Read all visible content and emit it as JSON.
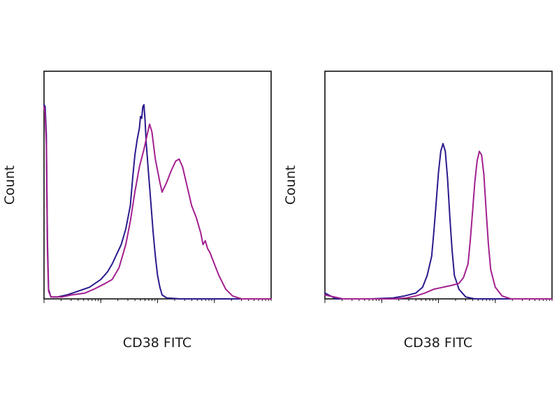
{
  "chart_data": [
    {
      "type": "line",
      "title": "",
      "xlabel": "CD38 FITC",
      "ylabel": "Count",
      "x_scale": "log",
      "xlim": [
        0,
        1
      ],
      "ylim": [
        0,
        1
      ],
      "grid": false,
      "legend": "none",
      "series": [
        {
          "color": "#2a1a8c",
          "points": [
            [
              0.0,
              1.0
            ],
            [
              0.005,
              0.99
            ],
            [
              0.01,
              0.85
            ],
            [
              0.015,
              0.3
            ],
            [
              0.02,
              0.05
            ],
            [
              0.03,
              0.01
            ],
            [
              0.06,
              0.01
            ],
            [
              0.1,
              0.02
            ],
            [
              0.15,
              0.04
            ],
            [
              0.2,
              0.06
            ],
            [
              0.25,
              0.1
            ],
            [
              0.28,
              0.14
            ],
            [
              0.3,
              0.18
            ],
            [
              0.32,
              0.23
            ],
            [
              0.34,
              0.28
            ],
            [
              0.36,
              0.36
            ],
            [
              0.38,
              0.48
            ],
            [
              0.39,
              0.62
            ],
            [
              0.4,
              0.74
            ],
            [
              0.41,
              0.82
            ],
            [
              0.42,
              0.88
            ],
            [
              0.425,
              0.94
            ],
            [
              0.43,
              0.93
            ],
            [
              0.435,
              0.99
            ],
            [
              0.44,
              1.0
            ],
            [
              0.445,
              0.92
            ],
            [
              0.45,
              0.8
            ],
            [
              0.46,
              0.65
            ],
            [
              0.47,
              0.5
            ],
            [
              0.48,
              0.35
            ],
            [
              0.49,
              0.22
            ],
            [
              0.5,
              0.12
            ],
            [
              0.51,
              0.06
            ],
            [
              0.52,
              0.02
            ],
            [
              0.54,
              0.005
            ],
            [
              0.6,
              0.0
            ],
            [
              1.0,
              0.0
            ]
          ]
        },
        {
          "color": "#a3208f",
          "points": [
            [
              0.0,
              0.99
            ],
            [
              0.005,
              0.95
            ],
            [
              0.01,
              0.8
            ],
            [
              0.015,
              0.25
            ],
            [
              0.02,
              0.04
            ],
            [
              0.03,
              0.01
            ],
            [
              0.08,
              0.01
            ],
            [
              0.12,
              0.02
            ],
            [
              0.18,
              0.03
            ],
            [
              0.22,
              0.05
            ],
            [
              0.27,
              0.08
            ],
            [
              0.3,
              0.1
            ],
            [
              0.33,
              0.16
            ],
            [
              0.36,
              0.28
            ],
            [
              0.38,
              0.4
            ],
            [
              0.4,
              0.55
            ],
            [
              0.42,
              0.68
            ],
            [
              0.44,
              0.77
            ],
            [
              0.455,
              0.85
            ],
            [
              0.465,
              0.9
            ],
            [
              0.475,
              0.86
            ],
            [
              0.49,
              0.72
            ],
            [
              0.51,
              0.6
            ],
            [
              0.52,
              0.55
            ],
            [
              0.54,
              0.6
            ],
            [
              0.56,
              0.66
            ],
            [
              0.58,
              0.71
            ],
            [
              0.595,
              0.72
            ],
            [
              0.61,
              0.68
            ],
            [
              0.63,
              0.58
            ],
            [
              0.65,
              0.48
            ],
            [
              0.67,
              0.42
            ],
            [
              0.69,
              0.34
            ],
            [
              0.7,
              0.28
            ],
            [
              0.71,
              0.3
            ],
            [
              0.72,
              0.26
            ],
            [
              0.73,
              0.24
            ],
            [
              0.75,
              0.18
            ],
            [
              0.77,
              0.12
            ],
            [
              0.8,
              0.05
            ],
            [
              0.83,
              0.015
            ],
            [
              0.87,
              0.0
            ],
            [
              1.0,
              0.0
            ]
          ]
        }
      ]
    },
    {
      "type": "line",
      "title": "",
      "xlabel": "CD38 FITC",
      "ylabel": "Count",
      "x_scale": "log",
      "xlim": [
        0,
        1
      ],
      "ylim": [
        0,
        1
      ],
      "grid": false,
      "legend": "none",
      "series": [
        {
          "color": "#2a1a8c",
          "points": [
            [
              0.0,
              0.03
            ],
            [
              0.05,
              0.0
            ],
            [
              0.2,
              0.0
            ],
            [
              0.3,
              0.005
            ],
            [
              0.35,
              0.015
            ],
            [
              0.4,
              0.03
            ],
            [
              0.43,
              0.06
            ],
            [
              0.45,
              0.12
            ],
            [
              0.47,
              0.22
            ],
            [
              0.48,
              0.35
            ],
            [
              0.49,
              0.5
            ],
            [
              0.5,
              0.65
            ],
            [
              0.51,
              0.76
            ],
            [
              0.52,
              0.8
            ],
            [
              0.53,
              0.76
            ],
            [
              0.54,
              0.62
            ],
            [
              0.55,
              0.42
            ],
            [
              0.56,
              0.25
            ],
            [
              0.57,
              0.12
            ],
            [
              0.59,
              0.05
            ],
            [
              0.62,
              0.01
            ],
            [
              0.66,
              0.0
            ],
            [
              1.0,
              0.0
            ]
          ]
        },
        {
          "color": "#a3208f",
          "points": [
            [
              0.0,
              0.02
            ],
            [
              0.08,
              0.0
            ],
            [
              0.3,
              0.0
            ],
            [
              0.36,
              0.005
            ],
            [
              0.4,
              0.015
            ],
            [
              0.44,
              0.03
            ],
            [
              0.48,
              0.05
            ],
            [
              0.52,
              0.06
            ],
            [
              0.56,
              0.07
            ],
            [
              0.59,
              0.08
            ],
            [
              0.61,
              0.11
            ],
            [
              0.63,
              0.18
            ],
            [
              0.64,
              0.3
            ],
            [
              0.65,
              0.45
            ],
            [
              0.66,
              0.6
            ],
            [
              0.67,
              0.71
            ],
            [
              0.68,
              0.76
            ],
            [
              0.69,
              0.74
            ],
            [
              0.7,
              0.64
            ],
            [
              0.71,
              0.45
            ],
            [
              0.72,
              0.28
            ],
            [
              0.73,
              0.15
            ],
            [
              0.75,
              0.06
            ],
            [
              0.78,
              0.015
            ],
            [
              0.82,
              0.0
            ],
            [
              1.0,
              0.0
            ]
          ]
        }
      ]
    }
  ]
}
